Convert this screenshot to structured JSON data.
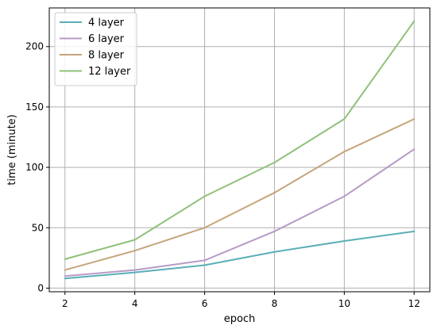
{
  "chart_data": {
    "type": "line",
    "xlabel": "epoch",
    "ylabel": "time (minute)",
    "x": [
      2,
      4,
      6,
      8,
      10,
      12
    ],
    "xlim": [
      1.55,
      12.45
    ],
    "ylim": [
      -3,
      232
    ],
    "xticks": [
      2,
      4,
      6,
      8,
      10,
      12
    ],
    "yticks": [
      0,
      50,
      100,
      150,
      200
    ],
    "grid": true,
    "legend_position": "top-left",
    "series": [
      {
        "name": "4 layer",
        "color": "#5aafb7",
        "values": [
          8,
          13,
          19,
          30,
          39,
          47
        ]
      },
      {
        "name": "6 layer",
        "color": "#b79bc6",
        "values": [
          10,
          15,
          23,
          47,
          76,
          115
        ]
      },
      {
        "name": "8 layer",
        "color": "#c5a57b",
        "values": [
          15,
          31,
          50,
          79,
          113,
          140
        ]
      },
      {
        "name": "12 layer",
        "color": "#8fc17a",
        "values": [
          24,
          40,
          76,
          104,
          140,
          221
        ]
      }
    ]
  }
}
